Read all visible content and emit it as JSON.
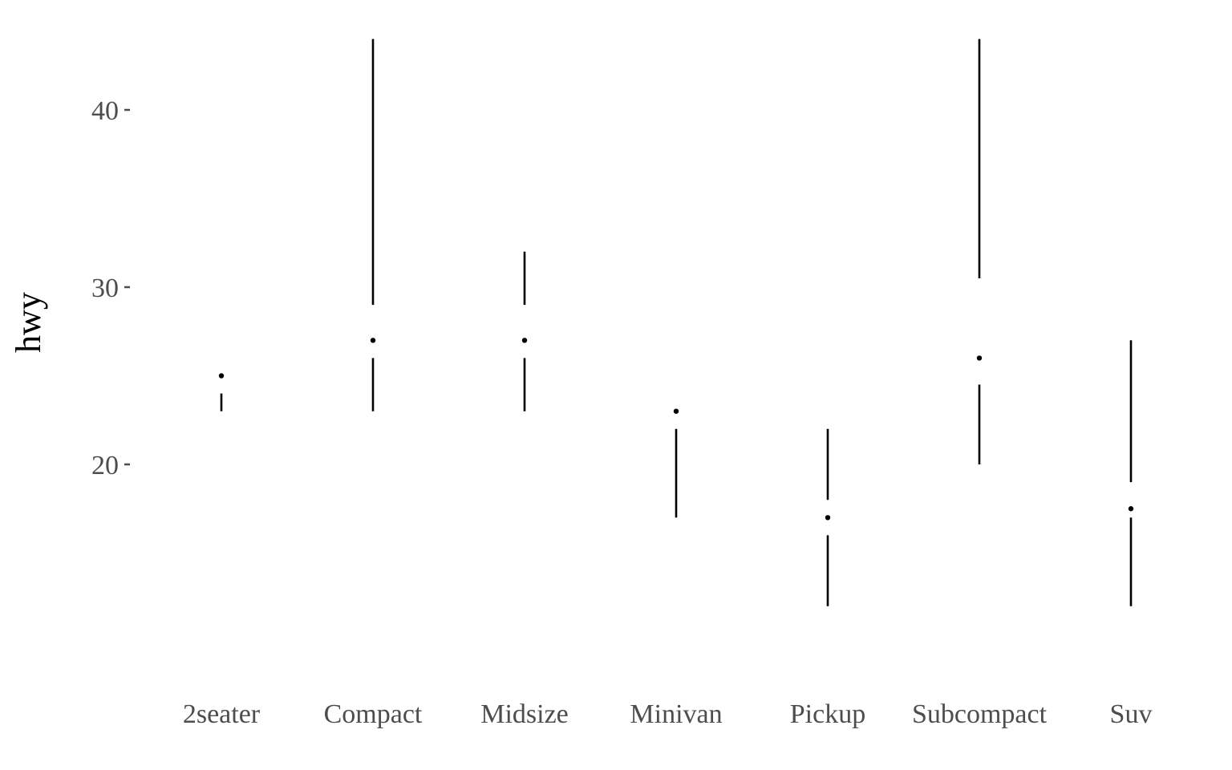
{
  "chart_data": {
    "type": "tufte-boxplot",
    "title": "",
    "xlabel": "",
    "ylabel": "hwy",
    "grid": false,
    "legend": "none",
    "ylim": [
      8,
      44
    ],
    "yticks": [
      20,
      30,
      40
    ],
    "categories": [
      "2seater",
      "Compact",
      "Midsize",
      "Minivan",
      "Pickup",
      "Subcompact",
      "Suv"
    ],
    "boxes": [
      {
        "name": "2seater",
        "whisker_low": 23,
        "q1": 24,
        "median": 25,
        "q3": 25,
        "whisker_high": 25
      },
      {
        "name": "Compact",
        "whisker_low": 23,
        "q1": 26,
        "median": 27,
        "q3": 29,
        "whisker_high": 44
      },
      {
        "name": "Midsize",
        "whisker_low": 23,
        "q1": 26,
        "median": 27,
        "q3": 29,
        "whisker_high": 32
      },
      {
        "name": "Minivan",
        "whisker_low": 17,
        "q1": 22,
        "median": 23,
        "q3": 23,
        "whisker_high": 23
      },
      {
        "name": "Pickup",
        "whisker_low": 12,
        "q1": 16,
        "median": 17,
        "q3": 18,
        "whisker_high": 22
      },
      {
        "name": "Subcompact",
        "whisker_low": 20,
        "q1": 24.5,
        "median": 26,
        "q3": 30.5,
        "whisker_high": 44
      },
      {
        "name": "Suv",
        "whisker_low": 12,
        "q1": 17,
        "median": 17.5,
        "q3": 19,
        "whisker_high": 27
      }
    ],
    "mark_color": "#000000",
    "tick_color": "#4d4d4d"
  }
}
